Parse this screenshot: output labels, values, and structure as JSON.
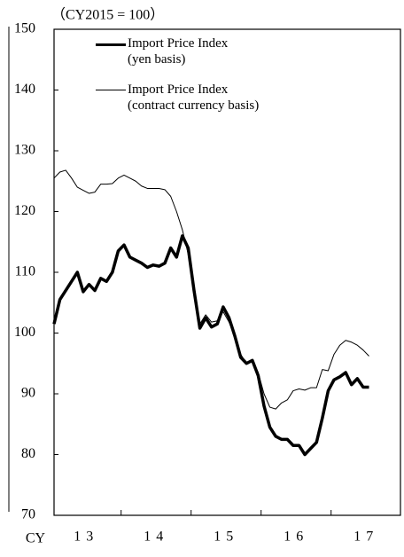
{
  "chart_data": {
    "type": "line",
    "annotation": "（CY2015 = 100）",
    "x_label": "CY",
    "categories": [
      null,
      null,
      null,
      null,
      null,
      "13",
      null,
      null,
      null,
      null,
      null,
      null,
      null,
      null,
      null,
      null,
      null,
      "14",
      null,
      null,
      null,
      null,
      null,
      null,
      null,
      null,
      null,
      null,
      null,
      "15",
      null,
      null,
      null,
      null,
      null,
      null,
      null,
      null,
      null,
      null,
      null,
      "16",
      null,
      null,
      null,
      null,
      null,
      null,
      null,
      null,
      null,
      null,
      null,
      "17",
      null
    ],
    "series": [
      {
        "name": "Import Price Index\n(yen basis)",
        "color": "#000000",
        "width": 3.5,
        "values": [
          101.5,
          105.5,
          107,
          108.5,
          110,
          106.8,
          108,
          107,
          109,
          108.5,
          110,
          113.5,
          114.5,
          112.5,
          112,
          111.5,
          110.8,
          111.2,
          111,
          111.5,
          114,
          112.5,
          116,
          114,
          107,
          100.8,
          102.5,
          101,
          101.5,
          104.3,
          102.5,
          99.5,
          96,
          95,
          95.5,
          93,
          88,
          84.5,
          83,
          82.5,
          82.5,
          81.5,
          81.5,
          80,
          81,
          82,
          86,
          90.5,
          92.3,
          92.8,
          93.5,
          91.5,
          92.5,
          91.1,
          91.1
        ]
      },
      {
        "name": "Import Price Index\n(contract currency basis)",
        "color": "#000000",
        "width": 1,
        "values": [
          125.5,
          126.5,
          126.8,
          125.5,
          124,
          123.5,
          123,
          123.2,
          124.5,
          124.5,
          124.6,
          125.5,
          126,
          125.5,
          125,
          124.2,
          123.8,
          123.8,
          123.8,
          123.6,
          122.5,
          120,
          117,
          113,
          107,
          101.5,
          103,
          101.8,
          102,
          103.5,
          101.8,
          99.5,
          96.5,
          95,
          95.5,
          93.5,
          90,
          87.8,
          87.5,
          88.5,
          89,
          90.5,
          90.8,
          90.6,
          91,
          91,
          94,
          93.8,
          96.5,
          98,
          98.8,
          98.5,
          98,
          97.2,
          96.2
        ]
      }
    ],
    "ylim": [
      70,
      150
    ],
    "yticks": [
      70,
      80,
      90,
      100,
      110,
      120,
      130,
      140,
      150
    ],
    "grid": false
  }
}
